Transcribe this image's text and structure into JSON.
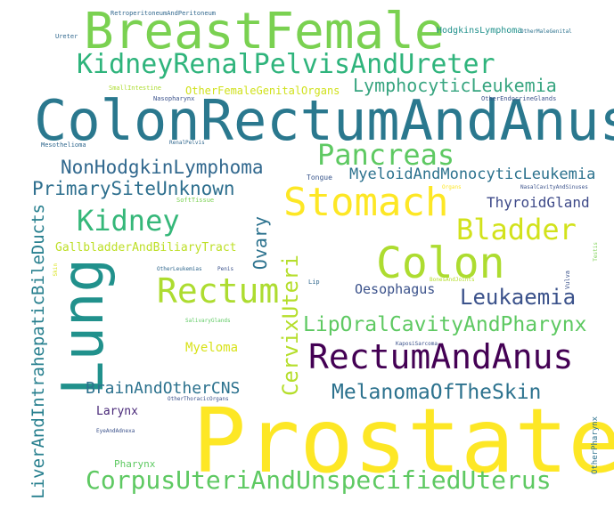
{
  "words": {
    "prostate": {
      "text": "Prostate",
      "color": "#fde725"
    },
    "colon_rectum_anus": {
      "text": "ColonRectumAndAnus",
      "color": "#2a788e"
    },
    "breast_female": {
      "text": "BreastFemale",
      "color": "#7ad151"
    },
    "lung": {
      "text": "Lung",
      "color": "#21918c"
    },
    "kidney_renal": {
      "text": "KidneyRenalPelvisAndUreter",
      "color": "#2fb47c"
    },
    "stomach": {
      "text": "Stomach",
      "color": "#fde725"
    },
    "colon": {
      "text": "Colon",
      "color": "#addc30"
    },
    "corpus_uteri": {
      "text": "CorpusUteriAndUnspecifiedUterus",
      "color": "#5ec962"
    },
    "rectum_and_anus": {
      "text": "RectumAndAnus",
      "color": "#440154"
    },
    "rectum": {
      "text": "Rectum",
      "color": "#addc30"
    },
    "pancreas": {
      "text": "Pancreas",
      "color": "#5ec962"
    },
    "kidney": {
      "text": "Kidney",
      "color": "#35b779"
    },
    "bladder": {
      "text": "Bladder",
      "color": "#d2e21b"
    },
    "lymphocytic": {
      "text": "LymphocyticLeukemia",
      "color": "#38a580"
    },
    "nonhodgkin": {
      "text": "NonHodgkinLymphoma",
      "color": "#31688e"
    },
    "primary_site": {
      "text": "PrimarySiteUnknown",
      "color": "#2e6f8e"
    },
    "liver": {
      "text": "LiverAndIntrahepaticBileDucts",
      "color": "#277f8e"
    },
    "cervix_uteri": {
      "text": "CervixUteri",
      "color": "#b5de2b"
    },
    "lip_oral": {
      "text": "LipOralCavityAndPharynx",
      "color": "#5ec962"
    },
    "melanoma": {
      "text": "MelanomaOfTheSkin",
      "color": "#2c728e"
    },
    "leukaemia": {
      "text": "Leukaemia",
      "color": "#3b528b"
    },
    "myeloid": {
      "text": "MyeloidAndMonocyticLeukemia",
      "color": "#2c728e"
    },
    "brain": {
      "text": "BrainAndOtherCNS",
      "color": "#2c728e"
    },
    "ovary": {
      "text": "Ovary",
      "color": "#2c728e"
    },
    "thyroid": {
      "text": "ThyroidGland",
      "color": "#3e4a89"
    },
    "oesophagus": {
      "text": "Oesophagus",
      "color": "#3b528b"
    },
    "gallbladder": {
      "text": "GallbladderAndBiliaryTract",
      "color": "#bddf26"
    },
    "myeloma": {
      "text": "Myeloma",
      "color": "#d8e219"
    },
    "other_female": {
      "text": "OtherFemaleGenitalOrgans",
      "color": "#d0e11c"
    },
    "larynx": {
      "text": "Larynx",
      "color": "#482878"
    },
    "pharynx": {
      "text": "Pharynx",
      "color": "#5ec962"
    },
    "hodgkin": {
      "text": "HodgkinsLymphoma",
      "color": "#21918c"
    },
    "other_pharynx": {
      "text": "OtherPharynx",
      "color": "#2c728e"
    },
    "retroperitoneum": {
      "text": "RetroperitoneumAndPeritoneum",
      "color": "#31688e"
    },
    "ureter": {
      "text": "Ureter",
      "color": "#31688e"
    },
    "small_intestine": {
      "text": "SmallIntestine",
      "color": "#addc30"
    },
    "nasopharynx": {
      "text": "Nasopharynx",
      "color": "#3b528b"
    },
    "other_male": {
      "text": "OtherMaleGenital",
      "color": "#2c728e"
    },
    "other_endocrine": {
      "text": "OtherEndocrineGlands",
      "color": "#3b528b"
    },
    "mesothelioma": {
      "text": "Mesothelioma",
      "color": "#31688e"
    },
    "renal_pelvis": {
      "text": "RenalPelvis",
      "color": "#31688e"
    },
    "tongue": {
      "text": "Tongue",
      "color": "#39568c"
    },
    "soft_tissue": {
      "text": "SoftTissue",
      "color": "#7ad151"
    },
    "organs": {
      "text": "Organs",
      "color": "#fde725"
    },
    "nasal_cavity": {
      "text": "NasalCavityAndSinuses",
      "color": "#3b528b"
    },
    "testis": {
      "text": "Testis",
      "color": "#7ad151"
    },
    "other_leukemias": {
      "text": "OtherLeukemias",
      "color": "#31688e"
    },
    "penis": {
      "text": "Penis",
      "color": "#3b528b"
    },
    "lip": {
      "text": "Lip",
      "color": "#31688e"
    },
    "bones_joints": {
      "text": "BonesAndJoints",
      "color": "#b5de2b"
    },
    "vulva": {
      "text": "Vulva",
      "color": "#3b528b"
    },
    "salivary": {
      "text": "SalivaryGlands",
      "color": "#5ec962"
    },
    "kaposi": {
      "text": "KaposiSarcoma",
      "color": "#3b528b"
    },
    "other_thoracic": {
      "text": "OtherThoracicOrgans",
      "color": "#3b528b"
    },
    "eye_adnexa": {
      "text": "EyeAndAdnexa",
      "color": "#3b528b"
    },
    "vertical_small": {
      "text": "Skin",
      "color": "#d8e219"
    }
  }
}
